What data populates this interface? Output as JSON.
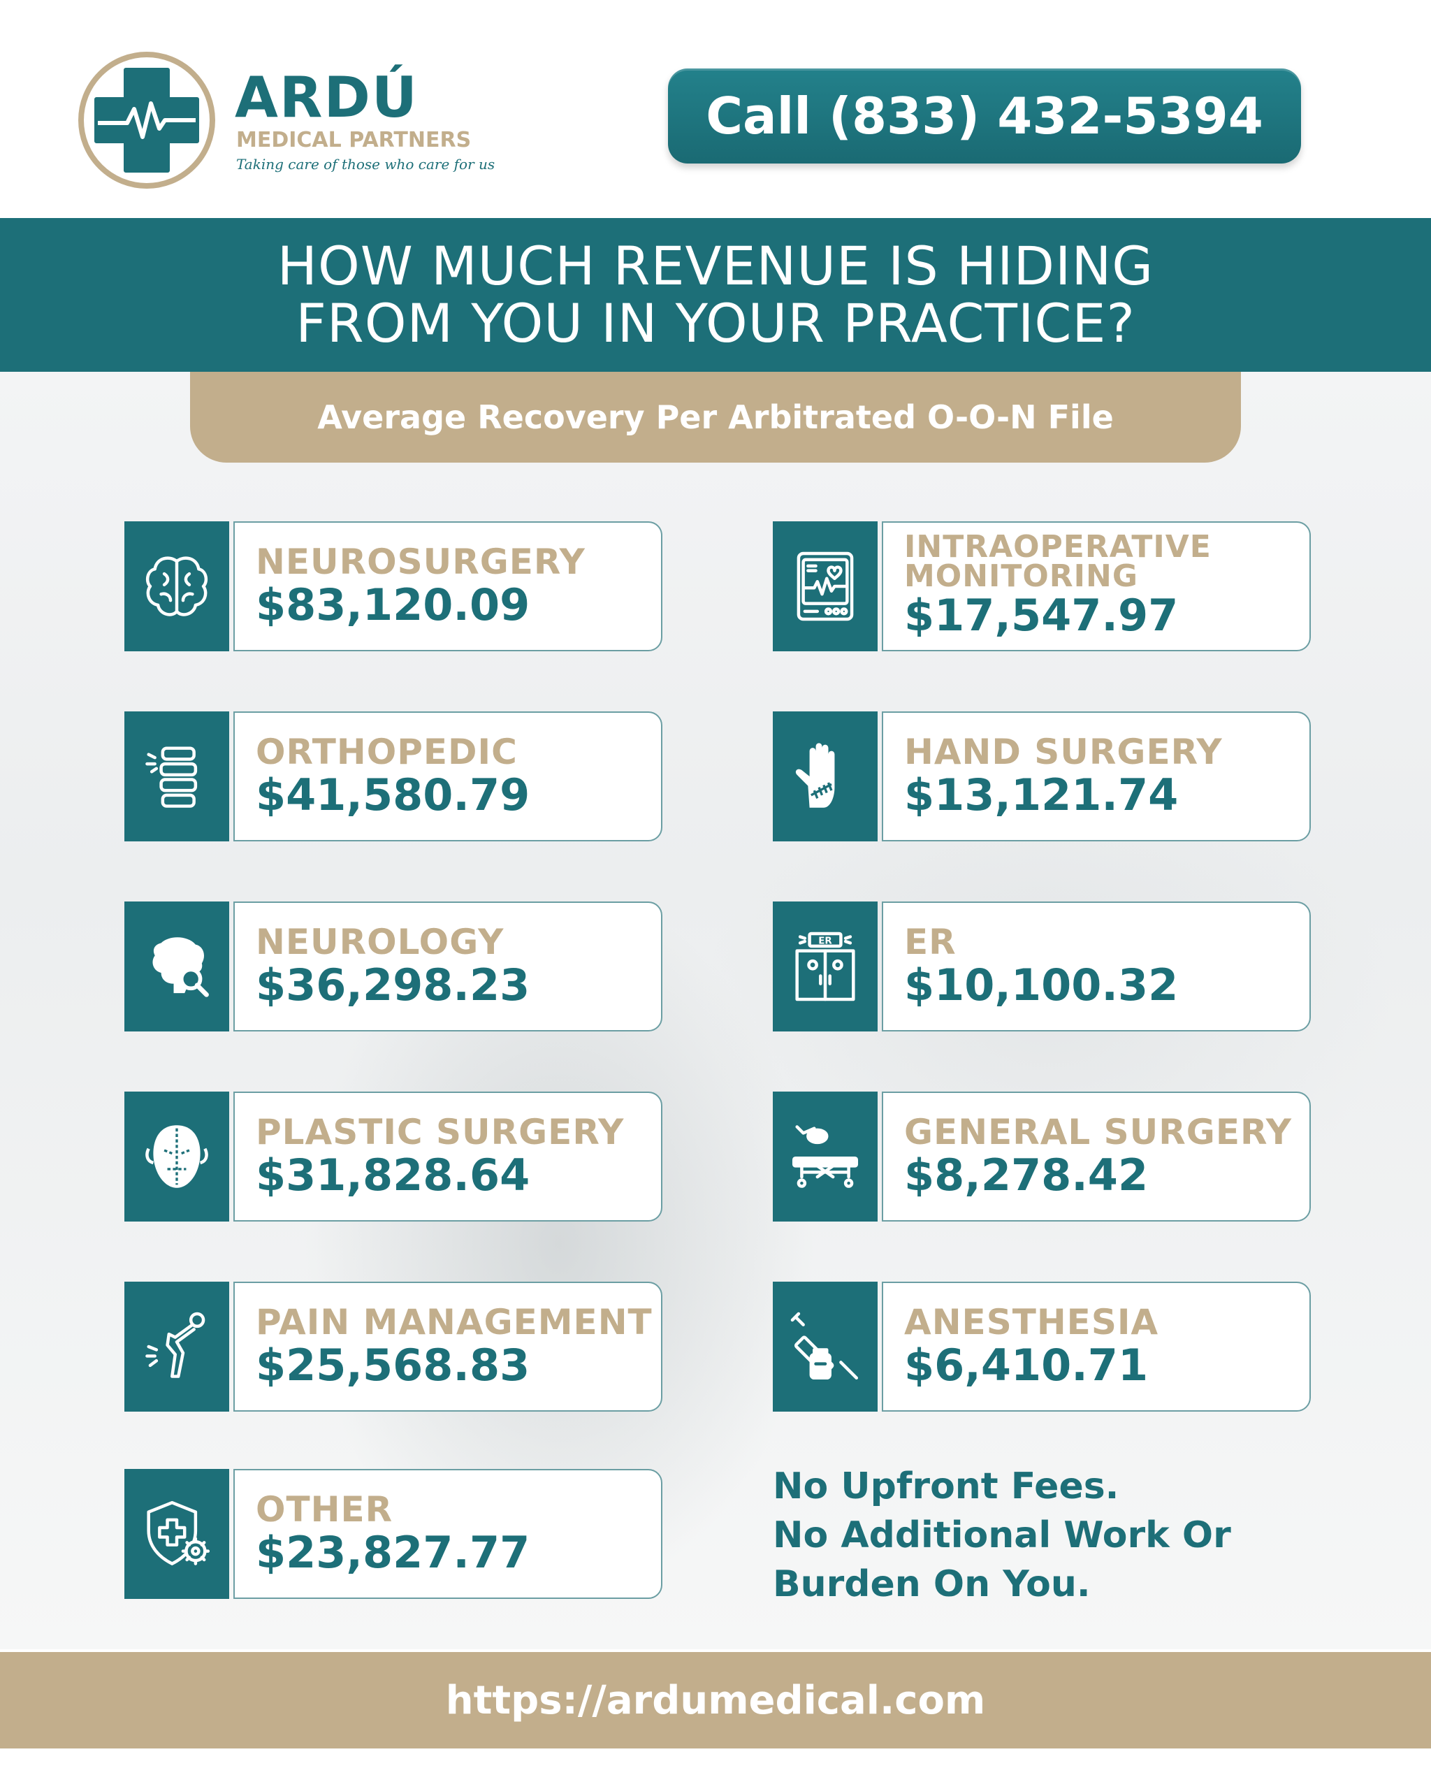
{
  "header": {
    "brand_name": "ARDÚ",
    "brand_subtitle": "MEDICAL PARTNERS",
    "tagline": "Taking care of those who care for us",
    "call_button": "Call (833) 432-5394"
  },
  "banner": {
    "line1": "HOW MUCH REVENUE IS HIDING",
    "line2": "FROM YOU IN YOUR PRACTICE?",
    "subtitle": "Average Recovery Per Arbitrated O-O-N File"
  },
  "specialties": [
    {
      "label": "NEUROSURGERY",
      "value": "$83,120.09",
      "icon": "brain-icon"
    },
    {
      "label": "ORTHOPEDIC",
      "value": "$41,580.79",
      "icon": "spine-icon"
    },
    {
      "label": "NEUROLOGY",
      "value": "$36,298.23",
      "icon": "head-brain-search-icon"
    },
    {
      "label": "PLASTIC SURGERY",
      "value": "$31,828.64",
      "icon": "face-markings-icon"
    },
    {
      "label": "PAIN MANAGEMENT",
      "value": "$25,568.83",
      "icon": "knee-pain-icon"
    },
    {
      "label": "OTHER",
      "value": "$23,827.77",
      "icon": "shield-gear-icon"
    },
    {
      "label_line1": "INTRAOPERATIVE",
      "label_line2": "MONITORING",
      "value": "$17,547.97",
      "icon": "heart-monitor-icon"
    },
    {
      "label": "HAND SURGERY",
      "value": "$13,121.74",
      "icon": "stitched-hand-icon"
    },
    {
      "label": "ER",
      "value": "$10,100.32",
      "icon": "er-doors-icon"
    },
    {
      "label": "GENERAL SURGERY",
      "value": "$8,278.42",
      "icon": "surgical-table-icon"
    },
    {
      "label": "ANESTHESIA",
      "value": "$6,410.71",
      "icon": "syringe-vial-icon"
    }
  ],
  "note": {
    "line1": "No Upfront Fees.",
    "line2": "No Additional Work Or",
    "line3": "Burden On You."
  },
  "footer": {
    "url": "https://ardumedical.com"
  },
  "colors": {
    "teal": "#1d6f78",
    "tan": "#c2ae8c",
    "white": "#ffffff"
  }
}
